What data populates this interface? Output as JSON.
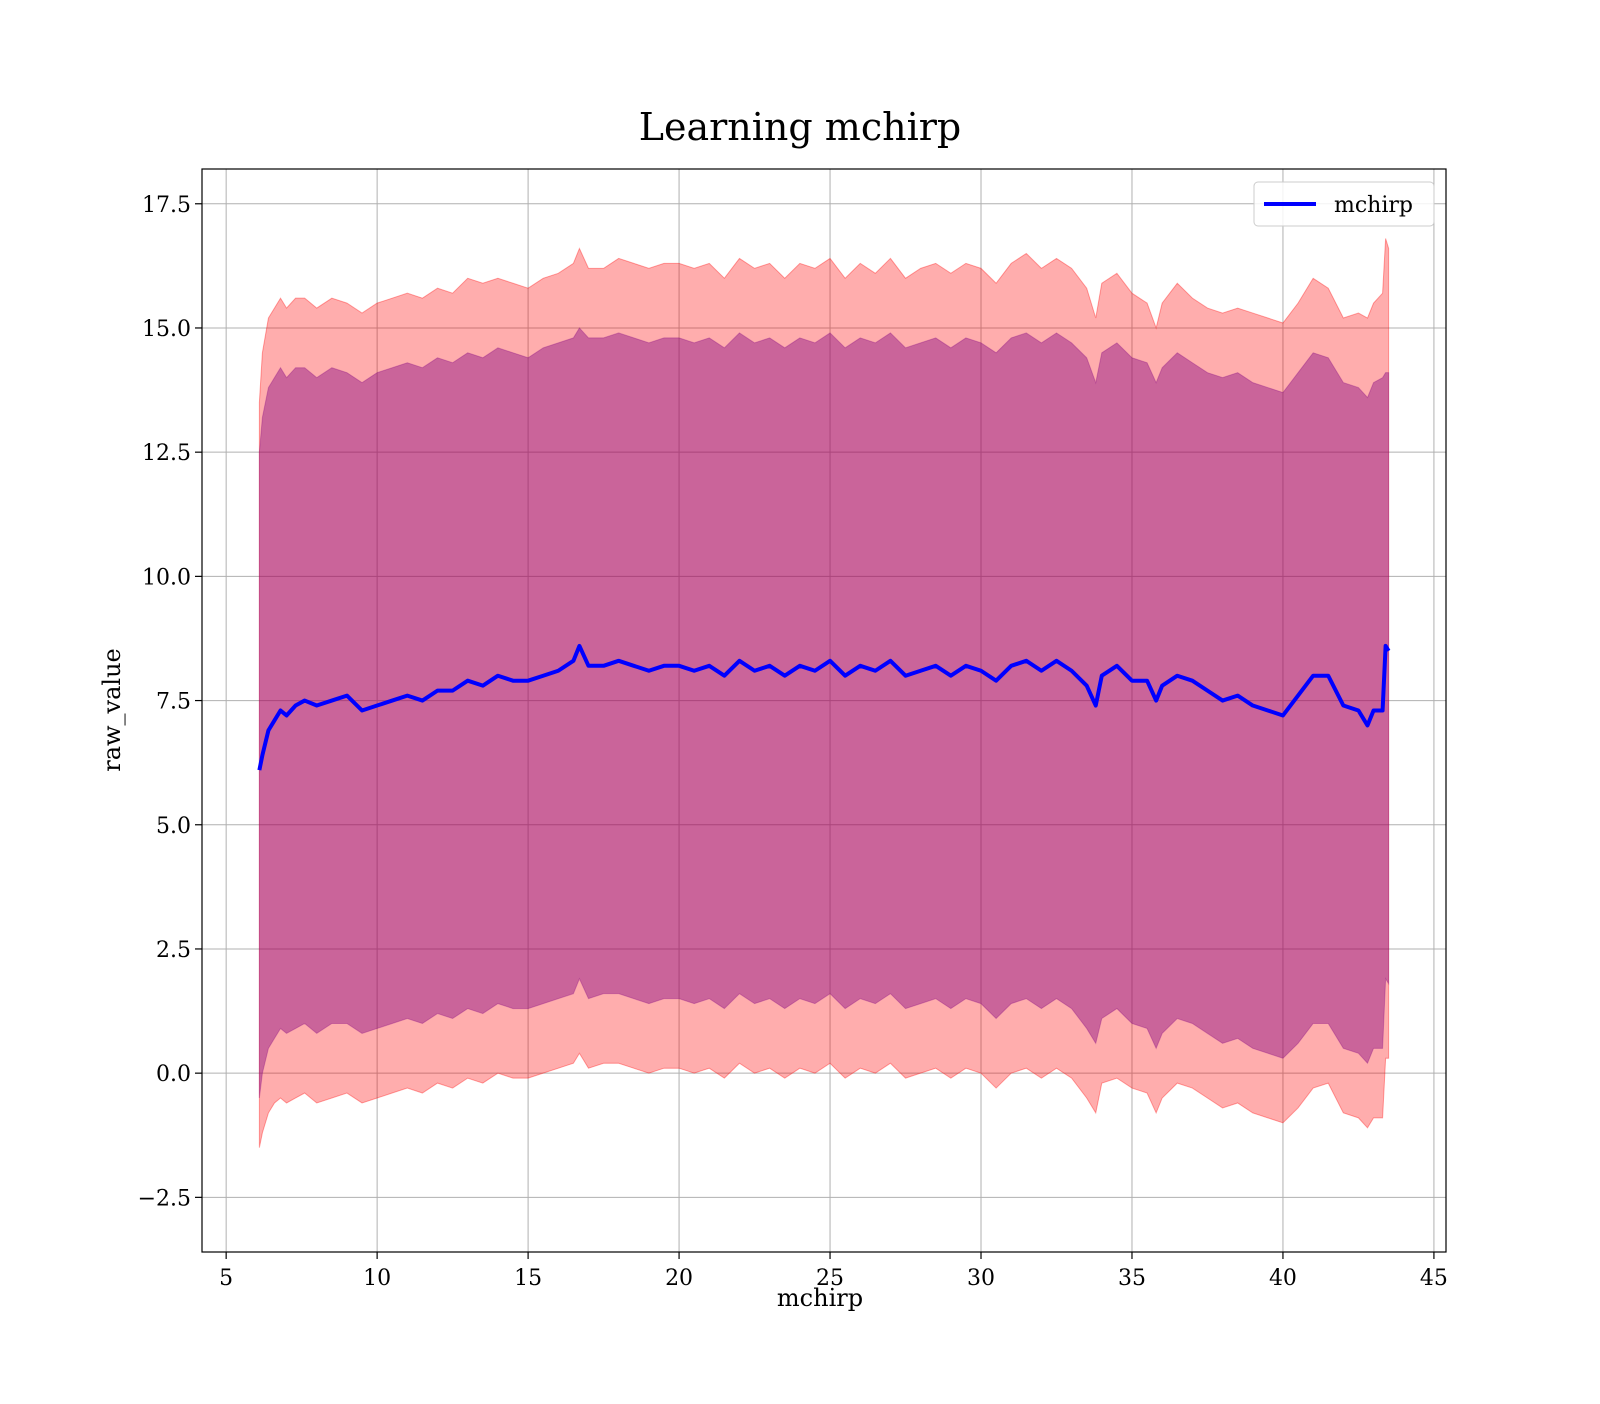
{
  "chart_data": {
    "type": "line",
    "title": "Learning mchirp",
    "xlabel": "mchirp",
    "ylabel": "raw_value",
    "xlim": [
      4.2,
      45.4
    ],
    "ylim": [
      -3.6,
      18.2
    ],
    "xticks": [
      5,
      10,
      15,
      20,
      25,
      30,
      35,
      40,
      45
    ],
    "xtick_labels": [
      "5",
      "10",
      "15",
      "20",
      "25",
      "30",
      "35",
      "40",
      "45"
    ],
    "yticks": [
      -2.5,
      0.0,
      2.5,
      5.0,
      7.5,
      10.0,
      12.5,
      15.0,
      17.5
    ],
    "ytick_labels": [
      "−2.5",
      "0.0",
      "2.5",
      "5.0",
      "7.5",
      "10.0",
      "12.5",
      "15.0",
      "17.5"
    ],
    "grid": true,
    "legend_position": "top-right",
    "legend": [
      {
        "label": "mchirp",
        "color": "#0000ff"
      }
    ],
    "colors": {
      "line": "#0000ff",
      "outer_band": "#ff0000",
      "inner_band": "#800080"
    },
    "series": [
      {
        "name": "mchirp",
        "x": [
          6.1,
          6.2,
          6.4,
          6.6,
          6.8,
          7.0,
          7.3,
          7.6,
          8.0,
          8.5,
          9.0,
          9.5,
          10.0,
          10.5,
          11.0,
          11.5,
          12.0,
          12.5,
          13.0,
          13.5,
          14.0,
          14.5,
          15.0,
          15.5,
          16.0,
          16.5,
          16.7,
          17.0,
          17.5,
          18.0,
          18.5,
          19.0,
          19.5,
          20.0,
          20.5,
          21.0,
          21.5,
          22.0,
          22.5,
          23.0,
          23.5,
          24.0,
          24.5,
          25.0,
          25.5,
          26.0,
          26.5,
          27.0,
          27.5,
          28.0,
          28.5,
          29.0,
          29.5,
          30.0,
          30.5,
          31.0,
          31.5,
          32.0,
          32.5,
          33.0,
          33.5,
          33.8,
          34.0,
          34.5,
          35.0,
          35.5,
          35.8,
          36.0,
          36.5,
          37.0,
          37.5,
          38.0,
          38.5,
          39.0,
          39.5,
          40.0,
          40.5,
          41.0,
          41.5,
          42.0,
          42.5,
          42.8,
          43.0,
          43.3,
          43.4,
          43.5
        ],
        "y": [
          6.1,
          6.4,
          6.9,
          7.1,
          7.3,
          7.2,
          7.4,
          7.5,
          7.4,
          7.5,
          7.6,
          7.3,
          7.4,
          7.5,
          7.6,
          7.5,
          7.7,
          7.7,
          7.9,
          7.8,
          8.0,
          7.9,
          7.9,
          8.0,
          8.1,
          8.3,
          8.6,
          8.2,
          8.2,
          8.3,
          8.2,
          8.1,
          8.2,
          8.2,
          8.1,
          8.2,
          8.0,
          8.3,
          8.1,
          8.2,
          8.0,
          8.2,
          8.1,
          8.3,
          8.0,
          8.2,
          8.1,
          8.3,
          8.0,
          8.1,
          8.2,
          8.0,
          8.2,
          8.1,
          7.9,
          8.2,
          8.3,
          8.1,
          8.3,
          8.1,
          7.8,
          7.4,
          8.0,
          8.2,
          7.9,
          7.9,
          7.5,
          7.8,
          8.0,
          7.9,
          7.7,
          7.5,
          7.6,
          7.4,
          7.3,
          7.2,
          7.6,
          8.0,
          8.0,
          7.4,
          7.3,
          7.0,
          7.3,
          7.3,
          8.6,
          8.5
        ]
      }
    ],
    "bands": {
      "outer_upper": [
        13.5,
        14.5,
        15.2,
        15.4,
        15.6,
        15.4,
        15.6,
        15.6,
        15.4,
        15.6,
        15.5,
        15.3,
        15.5,
        15.6,
        15.7,
        15.6,
        15.8,
        15.7,
        16.0,
        15.9,
        16.0,
        15.9,
        15.8,
        16.0,
        16.1,
        16.3,
        16.6,
        16.2,
        16.2,
        16.4,
        16.3,
        16.2,
        16.3,
        16.3,
        16.2,
        16.3,
        16.0,
        16.4,
        16.2,
        16.3,
        16.0,
        16.3,
        16.2,
        16.4,
        16.0,
        16.3,
        16.1,
        16.4,
        16.0,
        16.2,
        16.3,
        16.1,
        16.3,
        16.2,
        15.9,
        16.3,
        16.5,
        16.2,
        16.4,
        16.2,
        15.8,
        15.2,
        15.9,
        16.1,
        15.7,
        15.5,
        15.0,
        15.5,
        15.9,
        15.6,
        15.4,
        15.3,
        15.4,
        15.3,
        15.2,
        15.1,
        15.5,
        16.0,
        15.8,
        15.2,
        15.3,
        15.2,
        15.5,
        15.7,
        16.8,
        16.6
      ],
      "outer_lower": [
        -1.5,
        -1.2,
        -0.8,
        -0.6,
        -0.5,
        -0.6,
        -0.5,
        -0.4,
        -0.6,
        -0.5,
        -0.4,
        -0.6,
        -0.5,
        -0.4,
        -0.3,
        -0.4,
        -0.2,
        -0.3,
        -0.1,
        -0.2,
        0.0,
        -0.1,
        -0.1,
        0.0,
        0.1,
        0.2,
        0.4,
        0.1,
        0.2,
        0.2,
        0.1,
        0.0,
        0.1,
        0.1,
        0.0,
        0.1,
        -0.1,
        0.2,
        0.0,
        0.1,
        -0.1,
        0.1,
        0.0,
        0.2,
        -0.1,
        0.1,
        0.0,
        0.2,
        -0.1,
        0.0,
        0.1,
        -0.1,
        0.1,
        0.0,
        -0.3,
        0.0,
        0.1,
        -0.1,
        0.1,
        -0.1,
        -0.5,
        -0.8,
        -0.2,
        -0.1,
        -0.3,
        -0.4,
        -0.8,
        -0.5,
        -0.2,
        -0.3,
        -0.5,
        -0.7,
        -0.6,
        -0.8,
        -0.9,
        -1.0,
        -0.7,
        -0.3,
        -0.2,
        -0.8,
        -0.9,
        -1.1,
        -0.9,
        -0.9,
        0.3,
        0.3
      ],
      "inner_upper": [
        12.5,
        13.2,
        13.8,
        14.0,
        14.2,
        14.0,
        14.2,
        14.2,
        14.0,
        14.2,
        14.1,
        13.9,
        14.1,
        14.2,
        14.3,
        14.2,
        14.4,
        14.3,
        14.5,
        14.4,
        14.6,
        14.5,
        14.4,
        14.6,
        14.7,
        14.8,
        15.0,
        14.8,
        14.8,
        14.9,
        14.8,
        14.7,
        14.8,
        14.8,
        14.7,
        14.8,
        14.6,
        14.9,
        14.7,
        14.8,
        14.6,
        14.8,
        14.7,
        14.9,
        14.6,
        14.8,
        14.7,
        14.9,
        14.6,
        14.7,
        14.8,
        14.6,
        14.8,
        14.7,
        14.5,
        14.8,
        14.9,
        14.7,
        14.9,
        14.7,
        14.4,
        13.9,
        14.5,
        14.7,
        14.4,
        14.3,
        13.9,
        14.2,
        14.5,
        14.3,
        14.1,
        14.0,
        14.1,
        13.9,
        13.8,
        13.7,
        14.1,
        14.5,
        14.4,
        13.9,
        13.8,
        13.6,
        13.9,
        14.0,
        14.1,
        14.1
      ],
      "inner_lower": [
        -0.5,
        0.0,
        0.5,
        0.7,
        0.9,
        0.8,
        0.9,
        1.0,
        0.8,
        1.0,
        1.0,
        0.8,
        0.9,
        1.0,
        1.1,
        1.0,
        1.2,
        1.1,
        1.3,
        1.2,
        1.4,
        1.3,
        1.3,
        1.4,
        1.5,
        1.6,
        1.9,
        1.5,
        1.6,
        1.6,
        1.5,
        1.4,
        1.5,
        1.5,
        1.4,
        1.5,
        1.3,
        1.6,
        1.4,
        1.5,
        1.3,
        1.5,
        1.4,
        1.6,
        1.3,
        1.5,
        1.4,
        1.6,
        1.3,
        1.4,
        1.5,
        1.3,
        1.5,
        1.4,
        1.1,
        1.4,
        1.5,
        1.3,
        1.5,
        1.3,
        0.9,
        0.6,
        1.1,
        1.3,
        1.0,
        0.9,
        0.5,
        0.8,
        1.1,
        1.0,
        0.8,
        0.6,
        0.7,
        0.5,
        0.4,
        0.3,
        0.6,
        1.0,
        1.0,
        0.5,
        0.4,
        0.2,
        0.5,
        0.5,
        1.9,
        1.8
      ]
    }
  }
}
